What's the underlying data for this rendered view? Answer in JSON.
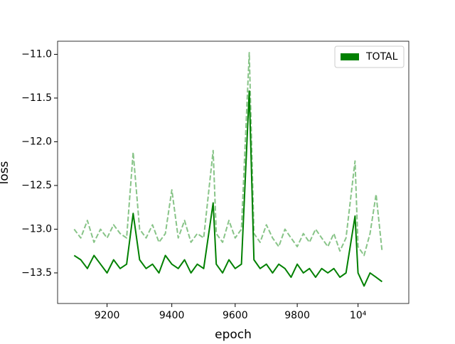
{
  "chart_data": {
    "type": "line",
    "xlabel": "epoch",
    "ylabel": "loss",
    "xscale": "log",
    "xlim": [
      9050,
      10170
    ],
    "ylim": [
      -13.85,
      -10.85
    ],
    "xticks": [
      9200,
      9400,
      9600,
      9800,
      {
        "value": 10000,
        "label": "10⁴"
      }
    ],
    "yticks": [
      {
        "value": -11,
        "label": "−11.0"
      },
      {
        "value": -11.5,
        "label": "−11.5"
      },
      {
        "value": -12,
        "label": "−12.0"
      },
      {
        "value": -12.5,
        "label": "−12.5"
      },
      {
        "value": -13,
        "label": "−13.0"
      },
      {
        "value": -13.5,
        "label": "−13.5"
      }
    ],
    "legend": "upper right",
    "x": [
      9100,
      9120,
      9140,
      9160,
      9180,
      9200,
      9220,
      9240,
      9260,
      9280,
      9300,
      9320,
      9340,
      9360,
      9380,
      9400,
      9420,
      9440,
      9460,
      9480,
      9500,
      9530,
      9540,
      9560,
      9580,
      9600,
      9620,
      9645,
      9660,
      9680,
      9700,
      9720,
      9740,
      9760,
      9780,
      9800,
      9820,
      9840,
      9860,
      9880,
      9900,
      9920,
      9940,
      9960,
      9990,
      10000,
      10020,
      10040,
      10060,
      10080
    ],
    "series": [
      {
        "color": "#88c488",
        "dashed": true,
        "values": [
          -13.0,
          -13.1,
          -12.9,
          -13.15,
          -13.0,
          -13.1,
          -12.95,
          -13.05,
          -13.1,
          -12.12,
          -13.0,
          -13.1,
          -12.95,
          -13.15,
          -13.05,
          -12.55,
          -13.1,
          -12.9,
          -13.15,
          -13.05,
          -13.1,
          -12.1,
          -13.05,
          -13.15,
          -12.9,
          -13.1,
          -13.0,
          -10.98,
          -13.05,
          -13.15,
          -12.95,
          -13.1,
          -13.2,
          -13.0,
          -13.1,
          -13.2,
          -13.05,
          -13.15,
          -13.0,
          -13.1,
          -13.2,
          -13.05,
          -13.25,
          -13.1,
          -12.22,
          -13.2,
          -13.3,
          -13.05,
          -12.6,
          -13.25
        ]
      },
      {
        "name": "TOTAL",
        "color": "#008000",
        "dashed": false,
        "values": [
          -13.3,
          -13.35,
          -13.45,
          -13.3,
          -13.4,
          -13.5,
          -13.35,
          -13.45,
          -13.4,
          -12.82,
          -13.35,
          -13.45,
          -13.4,
          -13.5,
          -13.3,
          -13.4,
          -13.45,
          -13.35,
          -13.5,
          -13.4,
          -13.45,
          -12.7,
          -13.4,
          -13.5,
          -13.35,
          -13.45,
          -13.4,
          -11.42,
          -13.35,
          -13.45,
          -13.4,
          -13.5,
          -13.4,
          -13.45,
          -13.55,
          -13.4,
          -13.5,
          -13.45,
          -13.55,
          -13.45,
          -13.5,
          -13.45,
          -13.55,
          -13.5,
          -12.85,
          -13.5,
          -13.65,
          -13.5,
          -13.55,
          -13.6
        ]
      }
    ]
  }
}
